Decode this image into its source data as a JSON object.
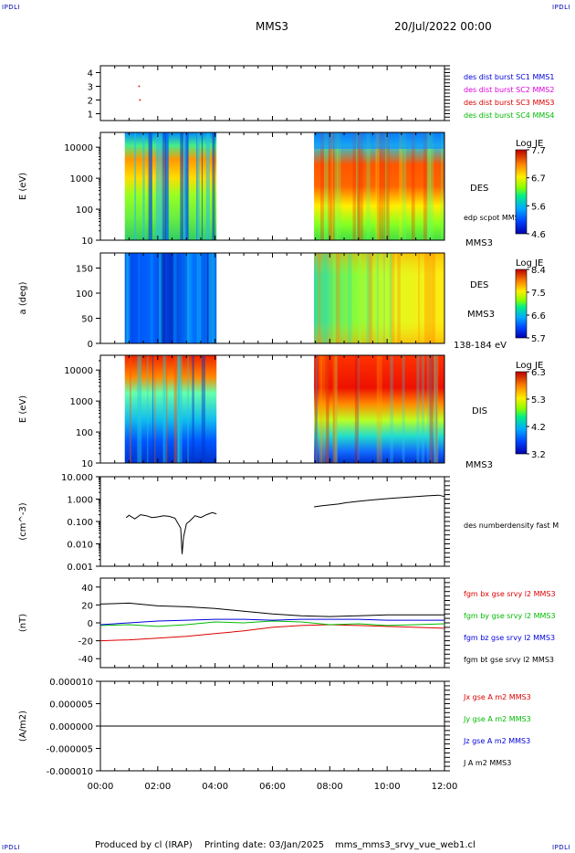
{
  "corner_label": "IPDLI",
  "header": {
    "spacecraft": "MMS3",
    "datetime": "20/Jul/2022 00:00"
  },
  "footer": {
    "producer": "Produced by cl (IRAP)",
    "printing": "Printing date: 03/Jan/2025",
    "file": "mms_mms3_srvy_vue_web1.cl"
  },
  "colors": {
    "red": "#dd0000",
    "green": "#00bb00",
    "blue": "#0000dd",
    "magenta": "#dd00dd",
    "black": "#000000"
  },
  "chart_data": [
    {
      "id": "burst-flags",
      "type": "scatter",
      "ylim": [
        0.5,
        4.5
      ],
      "yticks": [
        "1",
        "2",
        "3",
        "4"
      ],
      "series": [
        {
          "name": "des dist burst SC1 MMS1",
          "color": "#0000dd",
          "points": []
        },
        {
          "name": "des dist burst SC2 MMS2",
          "color": "#dd00dd",
          "points": []
        },
        {
          "name": "des dist burst SC3 MMS3",
          "color": "#dd0000",
          "points": [
            [
              1.35,
              3.0
            ],
            [
              1.38,
              2.0
            ]
          ]
        },
        {
          "name": "des dist burst SC4 MMS4",
          "color": "#00bb00",
          "points": []
        }
      ]
    },
    {
      "id": "des-energy",
      "type": "heatmap",
      "ylabel": "E (eV)",
      "yscale": "log",
      "yticks": [
        "10",
        "100",
        "1000",
        "10000"
      ],
      "ylim": [
        10,
        30000
      ],
      "panel_labels": [
        "DES",
        "edp scpot MMS3",
        "MMS3"
      ],
      "colorbar": {
        "title": "Log JE",
        "ticks": [
          "7.7",
          "6.7",
          "5.6",
          "4.6"
        ]
      },
      "coverage_hours": [
        [
          0.85,
          4.05
        ],
        [
          7.45,
          12.0
        ]
      ]
    },
    {
      "id": "des-pitch",
      "type": "heatmap",
      "ylabel": "a (deg)",
      "yticks": [
        "0",
        "50",
        "100",
        "150"
      ],
      "ylim": [
        0,
        180
      ],
      "panel_labels": [
        "DES",
        "MMS3",
        "138-184 eV"
      ],
      "colorbar": {
        "title": "Log JE",
        "ticks": [
          "8.4",
          "7.5",
          "6.6",
          "5.7"
        ]
      },
      "coverage_hours": [
        [
          0.85,
          4.05
        ],
        [
          7.45,
          12.0
        ]
      ]
    },
    {
      "id": "dis-energy",
      "type": "heatmap",
      "ylabel": "E (eV)",
      "yscale": "log",
      "yticks": [
        "10",
        "100",
        "1000",
        "10000"
      ],
      "ylim": [
        10,
        30000
      ],
      "panel_labels": [
        "DIS",
        "MMS3"
      ],
      "colorbar": {
        "title": "Log JE",
        "ticks": [
          "6.3",
          "5.3",
          "4.2",
          "3.2"
        ]
      },
      "coverage_hours": [
        [
          0.85,
          4.05
        ],
        [
          7.45,
          12.0
        ]
      ]
    },
    {
      "id": "density",
      "type": "line",
      "ylabel": "(cm^-3)",
      "yscale": "log",
      "yticks": [
        "10.000",
        "1.000",
        "0.100",
        "0.010",
        "0.001"
      ],
      "ylim": [
        0.001,
        10
      ],
      "series": [
        {
          "name": "des numberdensity fast M",
          "color": "#000000",
          "x": [
            0.9,
            1.0,
            1.2,
            1.4,
            1.6,
            1.8,
            2.0,
            2.2,
            2.4,
            2.6,
            2.8,
            2.85,
            2.9,
            3.0,
            3.1,
            3.3,
            3.5,
            3.7,
            3.9,
            4.05,
            7.45,
            7.7,
            8.0,
            8.3,
            8.6,
            9.0,
            9.4,
            9.8,
            10.2,
            10.6,
            11.0,
            11.4,
            11.8,
            12.0
          ],
          "y": [
            0.15,
            0.19,
            0.13,
            0.2,
            0.18,
            0.15,
            0.16,
            0.18,
            0.17,
            0.14,
            0.05,
            0.0035,
            0.02,
            0.08,
            0.1,
            0.18,
            0.15,
            0.2,
            0.25,
            0.22,
            0.45,
            0.5,
            0.55,
            0.6,
            0.7,
            0.8,
            0.9,
            1.0,
            1.1,
            1.2,
            1.3,
            1.4,
            1.5,
            1.3
          ]
        }
      ]
    },
    {
      "id": "magnetic-field",
      "type": "line",
      "ylabel": "(nT)",
      "yticks": [
        "40",
        "20",
        "0",
        "-20",
        "-40"
      ],
      "ylim": [
        -50,
        50
      ],
      "x": [
        0,
        1,
        2,
        3,
        4,
        5,
        6,
        7,
        8,
        9,
        10,
        11,
        12
      ],
      "series": [
        {
          "name": "fgm bx gse srvy l2 MMS3",
          "color": "#dd0000",
          "values": [
            -20,
            -19,
            -17,
            -15,
            -12,
            -9,
            -5,
            -3,
            -2,
            -3,
            -4,
            -5,
            -6
          ]
        },
        {
          "name": "fgm by gse srvy l2 MMS3",
          "color": "#00bb00",
          "values": [
            -3,
            -2,
            -4,
            -2,
            1,
            0,
            2,
            1,
            -2,
            -1,
            -3,
            -2,
            -1
          ]
        },
        {
          "name": "fgm bz gse srvy l2 MMS3",
          "color": "#0000dd",
          "values": [
            -2,
            0,
            2,
            3,
            4,
            4,
            3,
            4,
            4,
            4,
            3,
            3,
            3
          ]
        },
        {
          "name": "fgm bt gse srvy l2 MMS3",
          "color": "#000000",
          "values": [
            21,
            22,
            19,
            18,
            16,
            13,
            10,
            8,
            7,
            8,
            9,
            9,
            9
          ]
        }
      ]
    },
    {
      "id": "current-density",
      "type": "line",
      "ylabel": "(A/m2)",
      "yticks": [
        "0.000010",
        "0.000005",
        "0.000000",
        "-0.000005",
        "-0.000010"
      ],
      "ylim": [
        -1e-05,
        1e-05
      ],
      "x": [
        0,
        12
      ],
      "series": [
        {
          "name": "Jx gse A m2 MMS3",
          "color": "#dd0000",
          "values": [
            0,
            0
          ]
        },
        {
          "name": "Jy gse A m2 MMS3",
          "color": "#00bb00",
          "values": [
            0,
            0
          ]
        },
        {
          "name": "Jz gse A m2 MMS3",
          "color": "#0000dd",
          "values": [
            0,
            0
          ]
        },
        {
          "name": "J A m2 MMS3",
          "color": "#000000",
          "values": [
            0,
            0
          ]
        }
      ]
    }
  ],
  "xaxis": {
    "ticks": [
      "00:00",
      "02:00",
      "04:00",
      "06:00",
      "08:00",
      "10:00",
      "12:00"
    ],
    "range_hours": [
      0,
      12
    ]
  }
}
